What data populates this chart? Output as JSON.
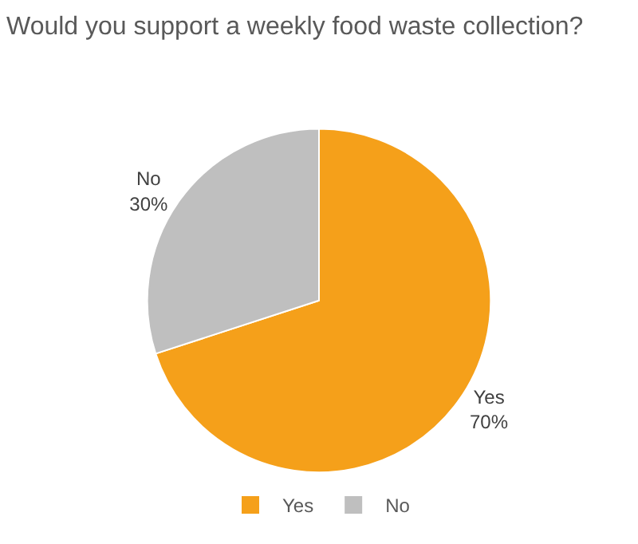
{
  "chart_data": {
    "type": "pie",
    "title": "Would you support a weekly food waste collection?",
    "categories": [
      "Yes",
      "No"
    ],
    "values": [
      70,
      30
    ],
    "colors": [
      "#f5a01a",
      "#bfbfbf"
    ],
    "value_labels": [
      "Yes\n70%",
      "No\n30%"
    ],
    "legend": "bottom"
  }
}
